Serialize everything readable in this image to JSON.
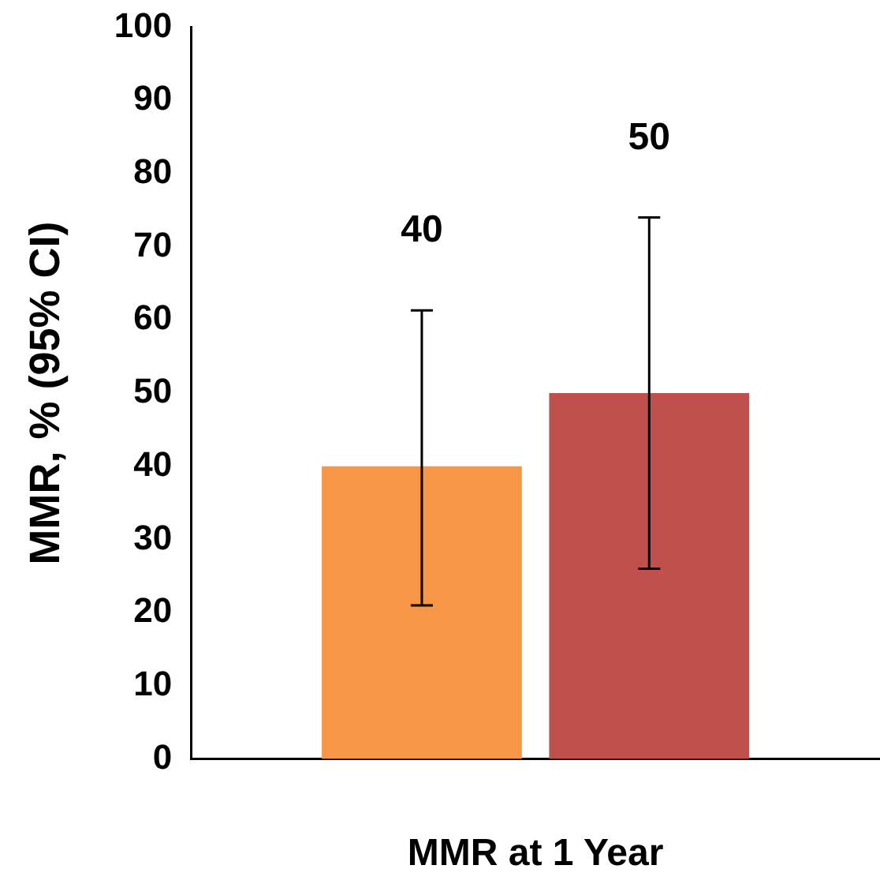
{
  "chart_data": {
    "type": "bar",
    "xlabel": "MMR at 1 Year",
    "ylabel": "MMR, % (95% CI)",
    "categories": [
      null
    ],
    "series": [
      {
        "color": "#f79646",
        "values": [
          40
        ],
        "errors": [
          [
            21,
            61.3
          ]
        ]
      },
      {
        "color": "#c0504d",
        "values": [
          50
        ],
        "errors": [
          [
            26,
            74
          ]
        ]
      }
    ],
    "ylim": [
      0,
      100
    ],
    "yticks": [
      0,
      10,
      20,
      30,
      40,
      50,
      60,
      70,
      80,
      90,
      100
    ],
    "annotations": [
      "40",
      "50"
    ],
    "grid": false,
    "legend": false
  }
}
